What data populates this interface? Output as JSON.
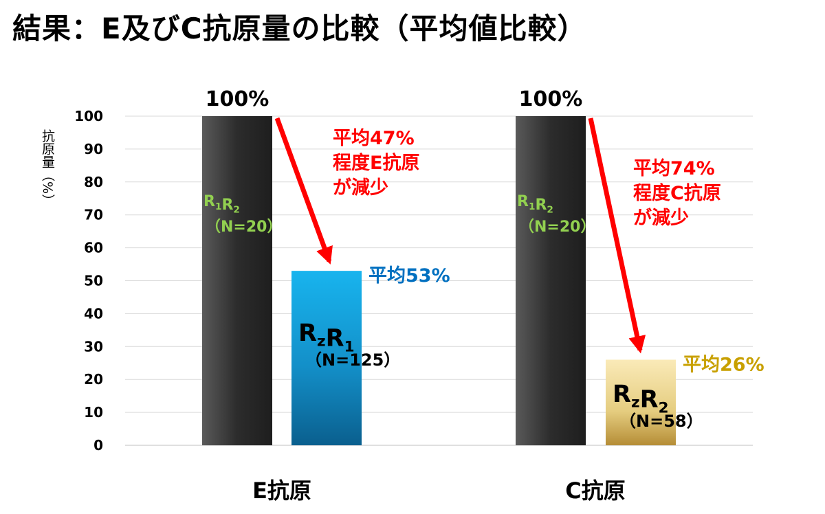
{
  "title": "結果：E及びC抗原量の比較（平均値比較）",
  "chart_data": {
    "type": "bar",
    "title": "結果：E及びC抗原量の比較（平均値比較）",
    "ylabel": "抗原量（%）",
    "xlabel": "",
    "ylim": [
      0,
      100
    ],
    "yticks": [
      0,
      10,
      20,
      30,
      40,
      50,
      60,
      70,
      80,
      90,
      100
    ],
    "grid": true,
    "categories": [
      "E抗原",
      "C抗原"
    ],
    "groups": [
      {
        "category": "E抗原",
        "bars": [
          {
            "name": "R1R2",
            "n_label": "（N=20）",
            "value": 100,
            "top_label": "100%",
            "color": "#3a3a3a",
            "label_color": "#92d050"
          },
          {
            "name": "RzR1",
            "n_label": "（N=125）",
            "value": 53,
            "top_label": "平均53%",
            "color": "#1ea0dc",
            "label_color": "#0070c0"
          }
        ],
        "annotation": [
          "平均47%",
          "程度E抗原",
          "が減少"
        ]
      },
      {
        "category": "C抗原",
        "bars": [
          {
            "name": "R1R2",
            "n_label": "（N=20）",
            "value": 100,
            "top_label": "100%",
            "color": "#3a3a3a",
            "label_color": "#92d050"
          },
          {
            "name": "RzR2",
            "n_label": "（N=58）",
            "value": 26,
            "top_label": "平均26%",
            "color": "#e6cf82",
            "label_color": "#c8a000"
          }
        ],
        "annotation": [
          "平均74%",
          "程度C抗原",
          "が減少"
        ]
      }
    ],
    "annotation_color": "#ff0000"
  }
}
